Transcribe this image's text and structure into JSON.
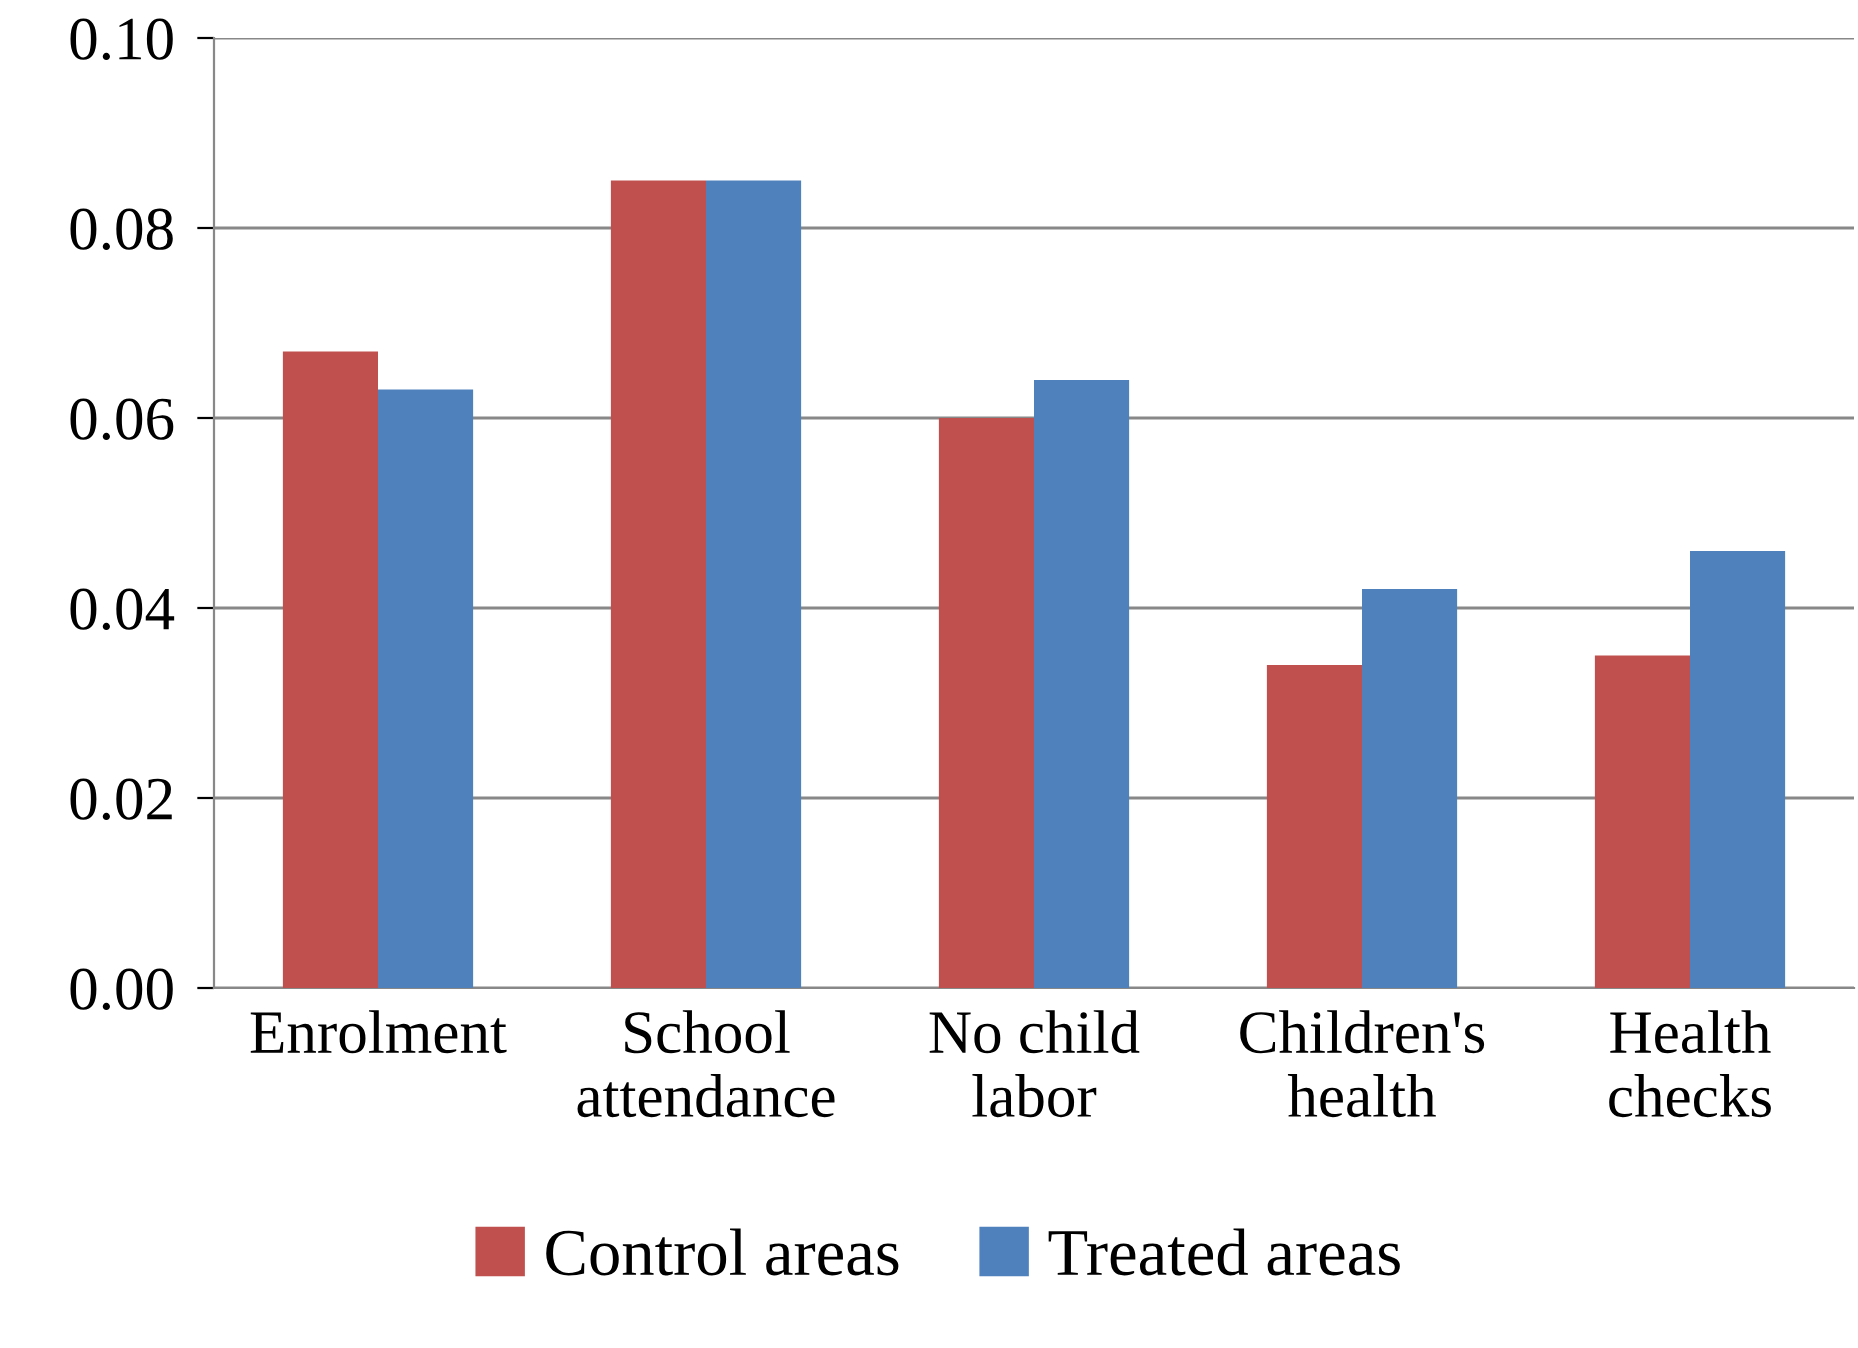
{
  "chart_data": {
    "type": "bar",
    "categories": [
      "Enrolment",
      "School\nattendance",
      "No child\nlabor",
      "Children's\nhealth",
      "Health\nchecks"
    ],
    "series": [
      {
        "name": "Control areas",
        "color": "#c0504d",
        "values": [
          0.067,
          0.085,
          0.06,
          0.034,
          0.035
        ]
      },
      {
        "name": "Treated areas",
        "color": "#4f81bd",
        "values": [
          0.063,
          0.085,
          0.064,
          0.042,
          0.046
        ]
      }
    ],
    "ylim": [
      0,
      0.1
    ],
    "yticks": [
      {
        "value": 0,
        "label": "0.00"
      },
      {
        "value": 0.02,
        "label": "0.02"
      },
      {
        "value": 0.04,
        "label": "0.04"
      },
      {
        "value": 0.06,
        "label": "0.06"
      },
      {
        "value": 0.08,
        "label": "0.08"
      },
      {
        "value": 0.1,
        "label": "0.10"
      }
    ],
    "grid": "y",
    "legend": "bottom"
  }
}
